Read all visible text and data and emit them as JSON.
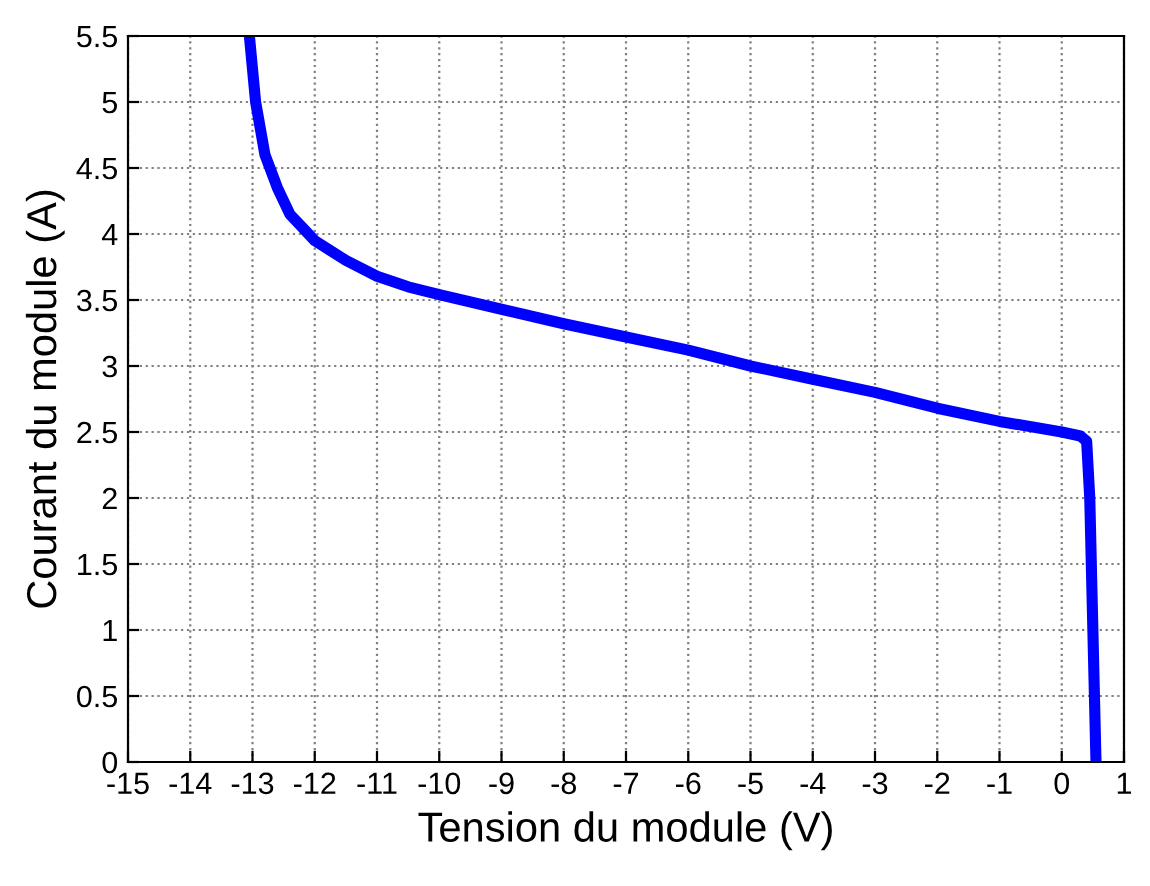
{
  "chart_data": {
    "type": "line",
    "xlabel": "Tension du module (V)",
    "ylabel": "Courant du module (A)",
    "series": [
      {
        "color": "#0000ff",
        "x": [
          -13.05,
          -12.95,
          -12.8,
          -12.6,
          -12.4,
          -12.2,
          -12,
          -11.5,
          -11,
          -10.5,
          -10,
          -9,
          -8,
          -7,
          -6,
          -5,
          -4,
          -3,
          -2,
          -1,
          0,
          0.3,
          0.4,
          0.45,
          0.5,
          0.55
        ],
        "values": [
          5.5,
          5.0,
          4.6,
          4.35,
          4.15,
          4.05,
          3.95,
          3.8,
          3.68,
          3.6,
          3.54,
          3.43,
          3.32,
          3.22,
          3.12,
          3.0,
          2.9,
          2.8,
          2.68,
          2.58,
          2.5,
          2.47,
          2.43,
          2.0,
          1.0,
          0
        ]
      }
    ],
    "xlim": [
      -15,
      1
    ],
    "xticks": [
      -15,
      -14,
      -13,
      -12,
      -11,
      -10,
      -9,
      -8,
      -7,
      -6,
      -5,
      -4,
      -3,
      -2,
      -1,
      0,
      1
    ],
    "ylim": [
      0,
      5.5
    ],
    "yticks": [
      0,
      0.5,
      1,
      1.5,
      2,
      2.5,
      3,
      3.5,
      4,
      4.5,
      5,
      5.5
    ],
    "grid": true,
    "marker": "none",
    "line_style": "solid"
  }
}
